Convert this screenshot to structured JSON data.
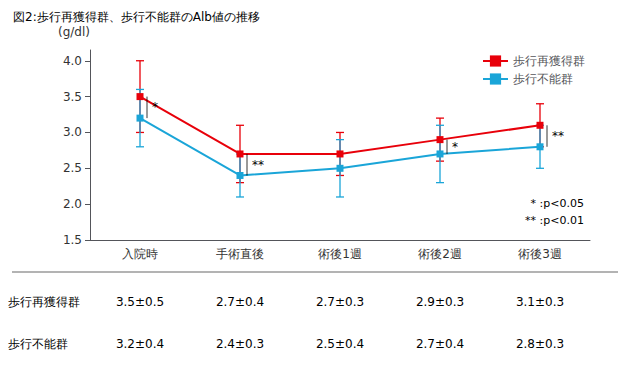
{
  "chart_data": {
    "type": "line",
    "title": "図2:歩行再獲得群、歩行不能群のAlb値の推移",
    "y_label": "(g/dl)",
    "categories": [
      "入院時",
      "手術直後",
      "術後1週",
      "術後2週",
      "術後3週"
    ],
    "series": [
      {
        "name": "歩行再獲得群",
        "color": "#e8000a",
        "marker": "square",
        "values": [
          3.5,
          2.7,
          2.7,
          2.9,
          3.1
        ],
        "errors": [
          0.5,
          0.4,
          0.3,
          0.3,
          0.3
        ]
      },
      {
        "name": "歩行不能群",
        "color": "#1aa5d8",
        "marker": "square",
        "values": [
          3.2,
          2.4,
          2.5,
          2.7,
          2.8
        ],
        "errors": [
          0.4,
          0.3,
          0.4,
          0.4,
          0.3
        ]
      }
    ],
    "ylim": [
      1.5,
      4.15
    ],
    "yticks": [
      1.5,
      {
        "value": 2.0,
        "label": "2.0"
      },
      2.5,
      {
        "value": 3.0,
        "label": "3.0"
      },
      3.5,
      {
        "value": 4.0,
        "label": "4.0"
      }
    ],
    "grid": false,
    "legend": "upper right",
    "annotations": [
      {
        "text": "*",
        "category": "入院時",
        "from": 3.2,
        "to": 3.5
      },
      {
        "text": "**",
        "category": "手術直後",
        "from": 2.4,
        "to": 2.7
      },
      {
        "text": "*",
        "category": "術後2週",
        "from": 2.7,
        "to": 2.9
      },
      {
        "text": "**",
        "category": "術後3週",
        "from": 2.8,
        "to": 3.1
      }
    ],
    "notes": [
      "* :p<0.05",
      "** :p<0.01"
    ],
    "table": [
      {
        "label": "歩行再獲得群",
        "values": [
          "3.5±0.5",
          "2.7±0.4",
          "2.7±0.3",
          "2.9±0.3",
          "3.1±0.3"
        ]
      },
      {
        "label": "歩行不能群",
        "values": [
          "3.2±0.4",
          "2.4±0.3",
          "2.5±0.4",
          "2.7±0.4",
          "2.8±0.3"
        ]
      }
    ]
  }
}
